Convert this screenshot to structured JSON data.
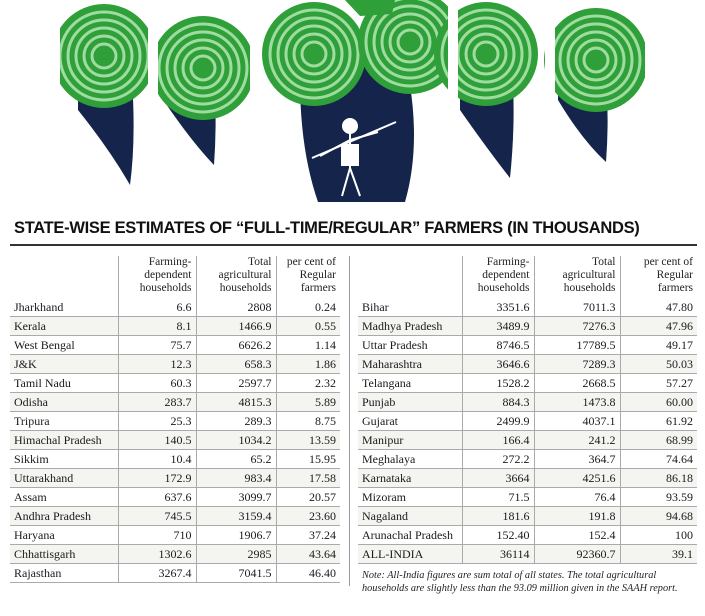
{
  "title": "STATE-WISE ESTIMATES OF “FULL-TIME/REGULAR” FARMERS (IN THOUSANDS)",
  "columns": {
    "state": "",
    "farming_dependent": "Farming-dependent households",
    "total_agri": "Total agricultural households",
    "percent_regular": "per cent of Regular farmers"
  },
  "left_rows": [
    {
      "state": "Jharkhand",
      "farming": "6.6",
      "total": "2808",
      "percent": "0.24"
    },
    {
      "state": "Kerala",
      "farming": "8.1",
      "total": "1466.9",
      "percent": "0.55"
    },
    {
      "state": "West Bengal",
      "farming": "75.7",
      "total": "6626.2",
      "percent": "1.14"
    },
    {
      "state": "J&K",
      "farming": "12.3",
      "total": "658.3",
      "percent": "1.86"
    },
    {
      "state": "Tamil Nadu",
      "farming": "60.3",
      "total": "2597.7",
      "percent": "2.32"
    },
    {
      "state": "Odisha",
      "farming": "283.7",
      "total": "4815.3",
      "percent": "5.89"
    },
    {
      "state": "Tripura",
      "farming": "25.3",
      "total": "289.3",
      "percent": "8.75"
    },
    {
      "state": "Himachal Pradesh",
      "farming": "140.5",
      "total": "1034.2",
      "percent": "13.59"
    },
    {
      "state": "Sikkim",
      "farming": "10.4",
      "total": "65.2",
      "percent": "15.95"
    },
    {
      "state": "Uttarakhand",
      "farming": "172.9",
      "total": "983.4",
      "percent": "17.58"
    },
    {
      "state": "Assam",
      "farming": "637.6",
      "total": "3099.7",
      "percent": "20.57"
    },
    {
      "state": "Andhra Pradesh",
      "farming": "745.5",
      "total": "3159.4",
      "percent": "23.60"
    },
    {
      "state": "Haryana",
      "farming": "710",
      "total": "1906.7",
      "percent": "37.24"
    },
    {
      "state": "Chhattisgarh",
      "farming": "1302.6",
      "total": "2985",
      "percent": "43.64"
    },
    {
      "state": "Rajasthan",
      "farming": "3267.4",
      "total": "7041.5",
      "percent": "46.40"
    }
  ],
  "right_rows": [
    {
      "state": "Bihar",
      "farming": "3351.6",
      "total": "7011.3",
      "percent": "47.80"
    },
    {
      "state": "Madhya Pradesh",
      "farming": "3489.9",
      "total": "7276.3",
      "percent": "47.96"
    },
    {
      "state": "Uttar Pradesh",
      "farming": "8746.5",
      "total": "17789.5",
      "percent": "49.17"
    },
    {
      "state": "Maharashtra",
      "farming": "3646.6",
      "total": "7289.3",
      "percent": "50.03"
    },
    {
      "state": "Telangana",
      "farming": "1528.2",
      "total": "2668.5",
      "percent": "57.27"
    },
    {
      "state": "Punjab",
      "farming": "884.3",
      "total": "1473.8",
      "percent": "60.00"
    },
    {
      "state": "Gujarat",
      "farming": "2499.9",
      "total": "4037.1",
      "percent": "61.92"
    },
    {
      "state": "Manipur",
      "farming": "166.4",
      "total": "241.2",
      "percent": "68.99"
    },
    {
      "state": "Meghalaya",
      "farming": "272.2",
      "total": "364.7",
      "percent": "74.64"
    },
    {
      "state": "Karnataka",
      "farming": "3664",
      "total": "4251.6",
      "percent": "86.18"
    },
    {
      "state": "Mizoram",
      "farming": "71.5",
      "total": "76.4",
      "percent": "93.59"
    },
    {
      "state": "Nagaland",
      "farming": "181.6",
      "total": "191.8",
      "percent": "94.68"
    },
    {
      "state": "Arunachal Pradesh",
      "farming": "152.40",
      "total": "152.4",
      "percent": "100"
    },
    {
      "state": "ALL-INDIA",
      "farming": "36114",
      "total": "92360.7",
      "percent": "39.1"
    }
  ],
  "note": "Note: All-India figures are sum total of all states. The total agricultural households are slightly less than the 93.09 million given in the SAAH report.",
  "colors": {
    "green": "#2f9f3a",
    "light_green": "#8fd08f",
    "navy": "#14244a"
  }
}
